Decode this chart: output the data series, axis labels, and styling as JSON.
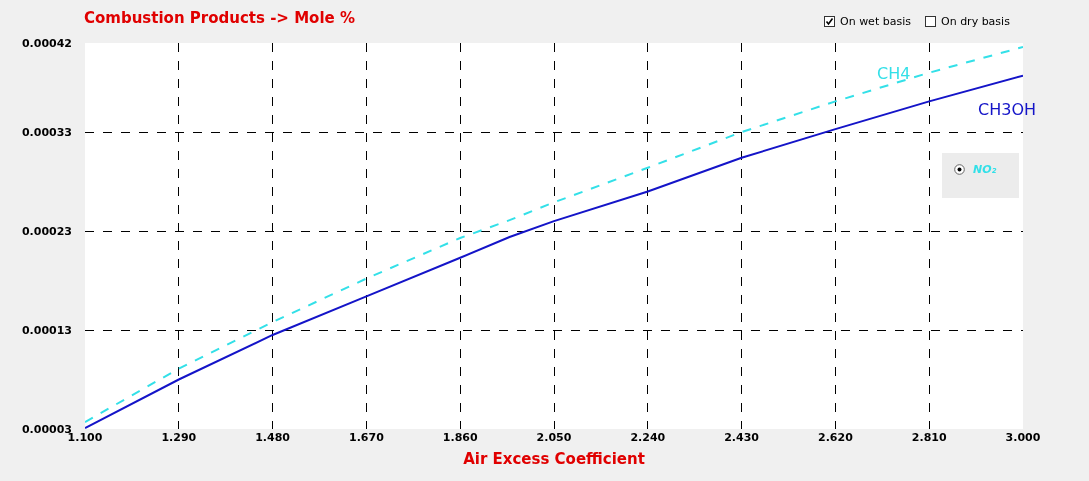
{
  "chart_data": {
    "type": "line",
    "title": "Combustion Products -> Mole %",
    "xlabel": "Air Excess Coefficient",
    "annotations": [
      "On wet basis",
      "On dry basis",
      "NO₂"
    ],
    "x": [
      1.1,
      1.29,
      1.48,
      1.67,
      1.86,
      1.96,
      2.05,
      2.24,
      2.43,
      2.62,
      2.81,
      3.0
    ],
    "series": [
      {
        "name": "CH4",
        "color": "#33e0e8",
        "line_style": "dashed",
        "values": [
          3.7e-05,
          9.1e-05,
          0.000138,
          0.000182,
          0.000223,
          0.000241,
          0.000259,
          0.000294,
          0.00033,
          0.000361,
          0.00039,
          0.000416
        ]
      },
      {
        "name": "CH3OH",
        "color": "#1414c8",
        "line_style": "solid",
        "values": [
          3.1e-05,
          8e-05,
          0.000125,
          0.000164,
          0.000203,
          0.000224,
          0.00024,
          0.00027,
          0.000304,
          0.000333,
          0.000361,
          0.000387
        ]
      }
    ],
    "xlim": [
      1.1,
      3.0
    ],
    "xticks": [
      {
        "value": 1.1,
        "label": "1.100"
      },
      {
        "value": 1.29,
        "label": "1.290"
      },
      {
        "value": 1.48,
        "label": "1.480"
      },
      {
        "value": 1.67,
        "label": "1.670"
      },
      {
        "value": 1.86,
        "label": "1.860"
      },
      {
        "value": 2.05,
        "label": "2.050"
      },
      {
        "value": 2.24,
        "label": "2.240"
      },
      {
        "value": 2.43,
        "label": "2.430"
      },
      {
        "value": 2.62,
        "label": "2.620"
      },
      {
        "value": 2.81,
        "label": "2.810"
      },
      {
        "value": 3.0,
        "label": "3.000"
      }
    ],
    "ylim": [
      3e-05,
      0.00042
    ],
    "yticks": [
      {
        "value": 3e-05,
        "label": "0.00003"
      },
      0.00013,
      0.00023,
      0.00033,
      0.00042
    ],
    "grid": true,
    "legend": false,
    "marker": "none"
  }
}
